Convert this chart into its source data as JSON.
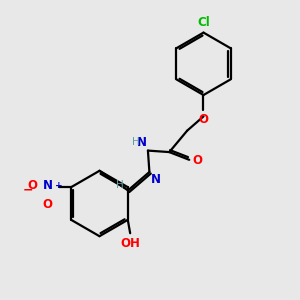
{
  "background_color": "#e8e8e8",
  "bond_color": "#000000",
  "atom_colors": {
    "C": "#000000",
    "H": "#5f9ea0",
    "O": "#ff0000",
    "N": "#0000cd",
    "Cl": "#00bb00"
  },
  "line_width": 1.6,
  "dbo": 0.07,
  "font_size_atoms": 8.5,
  "font_size_H": 7.5
}
